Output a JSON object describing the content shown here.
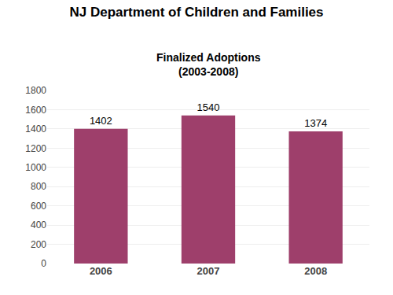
{
  "chart_data": {
    "type": "bar",
    "title": "NJ Department of Children and Families",
    "subtitle": "Finalized Adoptions\n(2003-2008)",
    "categories": [
      "2006",
      "2007",
      "2008"
    ],
    "values": [
      1402,
      1540,
      1374
    ],
    "color": "#9e3f6b",
    "ylim": [
      0,
      1800
    ],
    "yticks": [
      0,
      200,
      400,
      600,
      800,
      1000,
      1200,
      1400,
      1600,
      1800
    ],
    "grid": true,
    "data_labels": true
  }
}
